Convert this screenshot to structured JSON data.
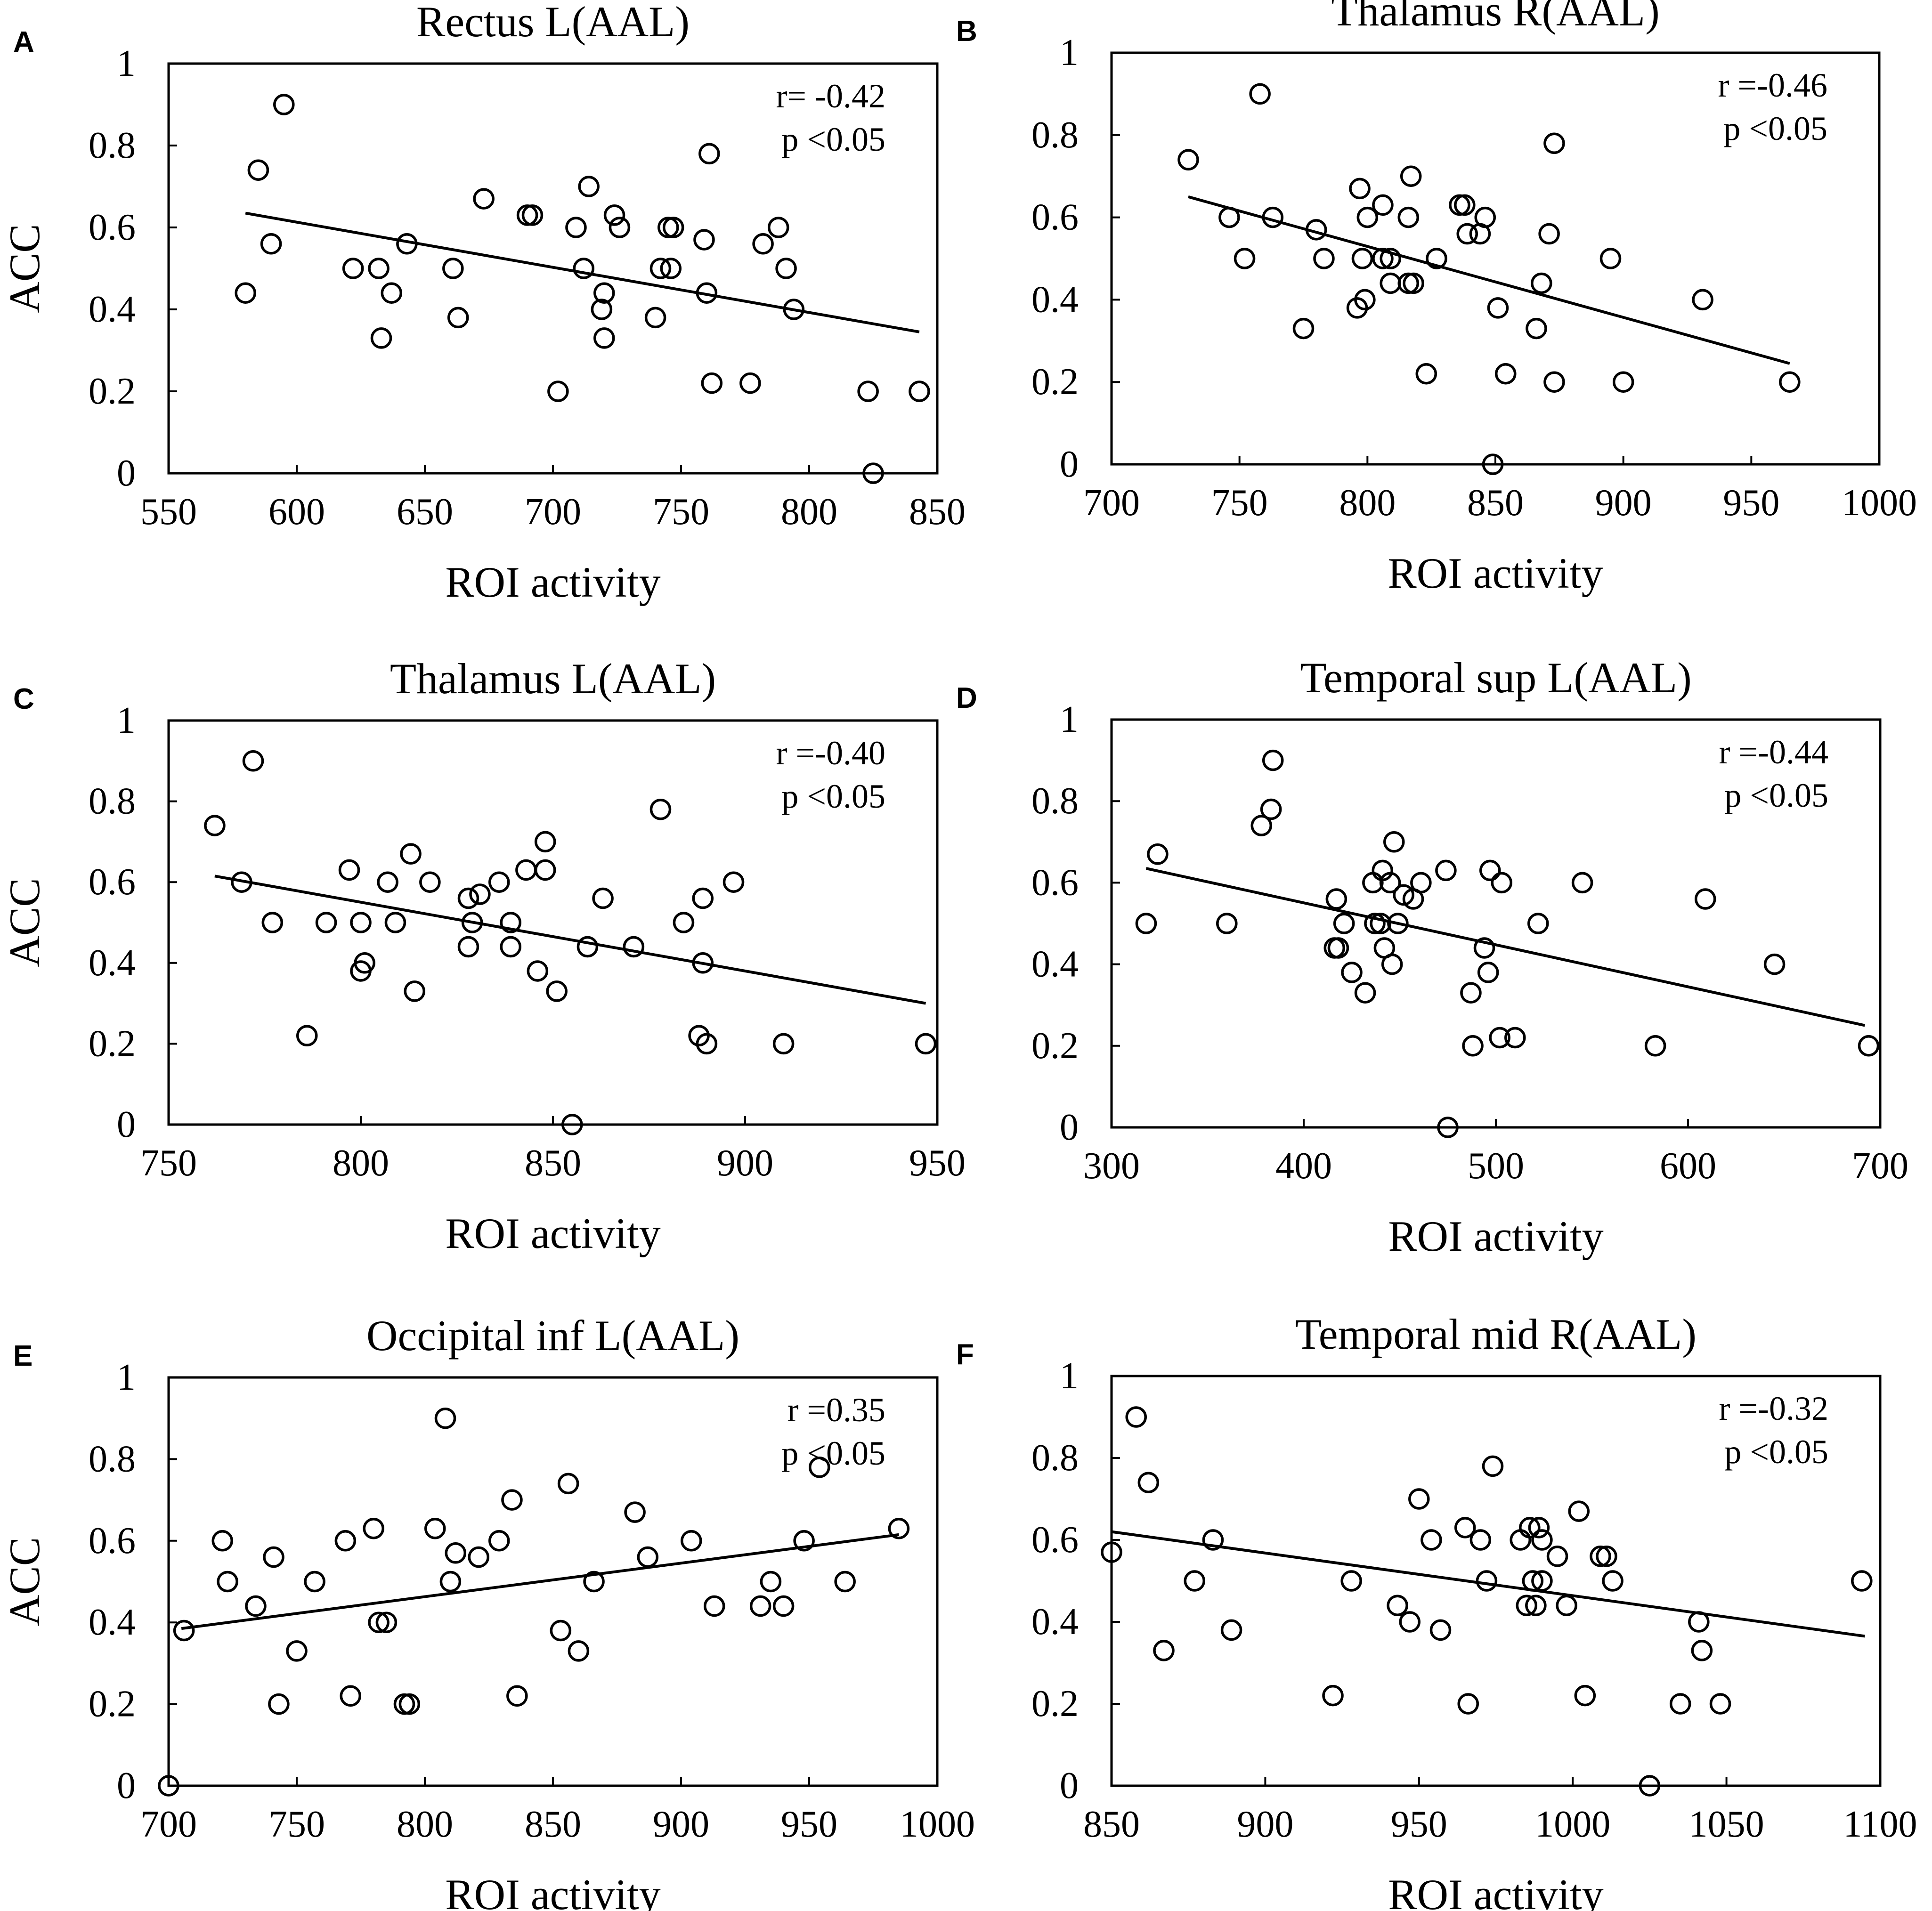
{
  "figure": {
    "description_hidden": false
  },
  "chart_data": [
    {
      "type": "scatter",
      "panel": "A",
      "title": "Rectus L(AAL)",
      "xlabel": "ROI activity",
      "ylabel": "ACC",
      "xlim": [
        550,
        850
      ],
      "ylim": [
        0,
        1
      ],
      "xticks": [
        550,
        600,
        650,
        700,
        750,
        800,
        850
      ],
      "yticks": [
        0,
        0.2,
        0.4,
        0.6,
        0.8,
        1
      ],
      "ytick_labels": [
        "0",
        "0.2",
        "0.4",
        "0.6",
        "0.8",
        "1"
      ],
      "stats": {
        "r": "r= -0.42",
        "p": "p <0.05"
      },
      "fit_line": {
        "x": [
          580,
          843
        ],
        "y": [
          0.635,
          0.345
        ]
      },
      "points": [
        [
          580,
          0.44
        ],
        [
          585,
          0.74
        ],
        [
          590,
          0.56
        ],
        [
          595,
          0.9
        ],
        [
          622,
          0.5
        ],
        [
          632,
          0.5
        ],
        [
          633,
          0.33
        ],
        [
          637,
          0.44
        ],
        [
          643,
          0.56
        ],
        [
          661,
          0.5
        ],
        [
          663,
          0.38
        ],
        [
          673,
          0.67
        ],
        [
          690,
          0.63
        ],
        [
          692,
          0.63
        ],
        [
          702,
          0.2
        ],
        [
          709,
          0.6
        ],
        [
          712,
          0.5
        ],
        [
          714,
          0.7
        ],
        [
          719,
          0.4
        ],
        [
          720,
          0.44
        ],
        [
          720,
          0.33
        ],
        [
          724,
          0.63
        ],
        [
          726,
          0.6
        ],
        [
          740,
          0.38
        ],
        [
          742,
          0.5
        ],
        [
          746,
          0.5
        ],
        [
          745,
          0.6
        ],
        [
          747,
          0.6
        ],
        [
          759,
          0.57
        ],
        [
          760,
          0.44
        ],
        [
          761,
          0.78
        ],
        [
          762,
          0.22
        ],
        [
          777,
          0.22
        ],
        [
          782,
          0.56
        ],
        [
          788,
          0.6
        ],
        [
          791,
          0.5
        ],
        [
          794,
          0.4
        ],
        [
          823,
          0.2
        ],
        [
          825,
          0.0
        ],
        [
          843,
          0.2
        ]
      ]
    },
    {
      "type": "scatter",
      "panel": "B",
      "title": "Thalamus R(AAL)",
      "xlabel": "ROI activity",
      "ylabel": "",
      "xlim": [
        700,
        1000
      ],
      "ylim": [
        0,
        1
      ],
      "xticks": [
        700,
        750,
        800,
        850,
        900,
        950,
        1000
      ],
      "yticks": [
        0,
        0.2,
        0.4,
        0.6,
        0.8,
        1
      ],
      "ytick_labels": [
        "0",
        "0.2",
        "0.4",
        "0.6",
        "0.8",
        "1"
      ],
      "stats": {
        "r": "r =-0.46",
        "p": "p <0.05"
      },
      "fit_line": {
        "x": [
          730,
          965
        ],
        "y": [
          0.65,
          0.245
        ]
      },
      "points": [
        [
          730,
          0.74
        ],
        [
          746,
          0.6
        ],
        [
          752,
          0.5
        ],
        [
          758,
          0.9
        ],
        [
          763,
          0.6
        ],
        [
          775,
          0.33
        ],
        [
          780,
          0.57
        ],
        [
          783,
          0.5
        ],
        [
          796,
          0.38
        ],
        [
          797,
          0.67
        ],
        [
          798,
          0.5
        ],
        [
          799,
          0.4
        ],
        [
          800,
          0.6
        ],
        [
          806,
          0.63
        ],
        [
          806,
          0.5
        ],
        [
          809,
          0.5
        ],
        [
          809,
          0.44
        ],
        [
          816,
          0.6
        ],
        [
          816,
          0.44
        ],
        [
          817,
          0.7
        ],
        [
          818,
          0.44
        ],
        [
          827,
          0.5
        ],
        [
          823,
          0.22
        ],
        [
          836,
          0.63
        ],
        [
          838,
          0.63
        ],
        [
          839,
          0.56
        ],
        [
          844,
          0.56
        ],
        [
          846,
          0.6
        ],
        [
          849,
          0.0
        ],
        [
          851,
          0.38
        ],
        [
          854,
          0.22
        ],
        [
          866,
          0.33
        ],
        [
          868,
          0.44
        ],
        [
          871,
          0.56
        ],
        [
          873,
          0.78
        ],
        [
          873,
          0.2
        ],
        [
          895,
          0.5
        ],
        [
          900,
          0.2
        ],
        [
          931,
          0.4
        ],
        [
          965,
          0.2
        ]
      ]
    },
    {
      "type": "scatter",
      "panel": "C",
      "title": "Thalamus L(AAL)",
      "xlabel": "ROI activity",
      "ylabel": "ACC",
      "xlim": [
        750,
        950
      ],
      "ylim": [
        0,
        1
      ],
      "xticks": [
        750,
        800,
        850,
        900,
        950
      ],
      "yticks": [
        0,
        0.2,
        0.4,
        0.6,
        0.8,
        1
      ],
      "ytick_labels": [
        "0",
        "0.2",
        "0.4",
        "0.6",
        "0.8",
        "1"
      ],
      "stats": {
        "r": "r =-0.40",
        "p": "p <0.05"
      },
      "fit_line": {
        "x": [
          762,
          947
        ],
        "y": [
          0.615,
          0.3
        ]
      },
      "points": [
        [
          762,
          0.74
        ],
        [
          769,
          0.6
        ],
        [
          772,
          0.9
        ],
        [
          777,
          0.5
        ],
        [
          786,
          0.22
        ],
        [
          791,
          0.5
        ],
        [
          797,
          0.63
        ],
        [
          800,
          0.5
        ],
        [
          800,
          0.38
        ],
        [
          801,
          0.4
        ],
        [
          807,
          0.6
        ],
        [
          809,
          0.5
        ],
        [
          813,
          0.67
        ],
        [
          814,
          0.33
        ],
        [
          818,
          0.6
        ],
        [
          828,
          0.56
        ],
        [
          828,
          0.44
        ],
        [
          829,
          0.5
        ],
        [
          831,
          0.57
        ],
        [
          836,
          0.6
        ],
        [
          839,
          0.5
        ],
        [
          839,
          0.44
        ],
        [
          843,
          0.63
        ],
        [
          846,
          0.38
        ],
        [
          848,
          0.7
        ],
        [
          848,
          0.63
        ],
        [
          851,
          0.33
        ],
        [
          855,
          0.0
        ],
        [
          859,
          0.44
        ],
        [
          863,
          0.56
        ],
        [
          871,
          0.44
        ],
        [
          878,
          0.78
        ],
        [
          884,
          0.5
        ],
        [
          888,
          0.22
        ],
        [
          889,
          0.56
        ],
        [
          889,
          0.4
        ],
        [
          890,
          0.2
        ],
        [
          897,
          0.6
        ],
        [
          910,
          0.2
        ],
        [
          947,
          0.2
        ]
      ]
    },
    {
      "type": "scatter",
      "panel": "D",
      "title": "Temporal sup L(AAL)",
      "xlabel": "ROI activity",
      "ylabel": "",
      "xlim": [
        300,
        700
      ],
      "ylim": [
        0,
        1
      ],
      "xticks": [
        300,
        400,
        500,
        600,
        700
      ],
      "yticks": [
        0,
        0.2,
        0.4,
        0.6,
        0.8,
        1
      ],
      "ytick_labels": [
        "0",
        "0.2",
        "0.4",
        "0.6",
        "0.8",
        "1"
      ],
      "stats": {
        "r": "r =-0.44",
        "p": "p <0.05"
      },
      "fit_line": {
        "x": [
          318,
          692
        ],
        "y": [
          0.635,
          0.25
        ]
      },
      "points": [
        [
          318,
          0.5
        ],
        [
          324,
          0.67
        ],
        [
          360,
          0.5
        ],
        [
          378,
          0.74
        ],
        [
          383,
          0.78
        ],
        [
          384,
          0.9
        ],
        [
          416,
          0.44
        ],
        [
          417,
          0.56
        ],
        [
          418,
          0.44
        ],
        [
          421,
          0.5
        ],
        [
          425,
          0.38
        ],
        [
          432,
          0.33
        ],
        [
          436,
          0.6
        ],
        [
          437,
          0.5
        ],
        [
          440,
          0.5
        ],
        [
          441,
          0.63
        ],
        [
          442,
          0.44
        ],
        [
          445,
          0.6
        ],
        [
          446,
          0.4
        ],
        [
          447,
          0.7
        ],
        [
          449,
          0.5
        ],
        [
          452,
          0.57
        ],
        [
          457,
          0.56
        ],
        [
          461,
          0.6
        ],
        [
          474,
          0.63
        ],
        [
          475,
          0.0
        ],
        [
          487,
          0.33
        ],
        [
          488,
          0.2
        ],
        [
          494,
          0.44
        ],
        [
          496,
          0.38
        ],
        [
          497,
          0.63
        ],
        [
          502,
          0.22
        ],
        [
          503,
          0.6
        ],
        [
          510,
          0.22
        ],
        [
          522,
          0.5
        ],
        [
          545,
          0.6
        ],
        [
          583,
          0.2
        ],
        [
          609,
          0.56
        ],
        [
          645,
          0.4
        ],
        [
          694,
          0.2
        ]
      ]
    },
    {
      "type": "scatter",
      "panel": "E",
      "title": "Occipital inf L(AAL)",
      "xlabel": "ROI activity",
      "ylabel": "ACC",
      "xlim": [
        700,
        1000
      ],
      "ylim": [
        0,
        1
      ],
      "xticks": [
        700,
        750,
        800,
        850,
        900,
        950,
        1000
      ],
      "yticks": [
        0,
        0.2,
        0.4,
        0.6,
        0.8,
        1
      ],
      "ytick_labels": [
        "0",
        "0.2",
        "0.4",
        "0.6",
        "0.8",
        "1"
      ],
      "stats": {
        "r": "r =0.35",
        "p": "p <0.05"
      },
      "fit_line": {
        "x": [
          705,
          985
        ],
        "y": [
          0.385,
          0.615
        ]
      },
      "points": [
        [
          700,
          0.0
        ],
        [
          706,
          0.38
        ],
        [
          721,
          0.6
        ],
        [
          723,
          0.5
        ],
        [
          734,
          0.44
        ],
        [
          741,
          0.56
        ],
        [
          743,
          0.2
        ],
        [
          750,
          0.33
        ],
        [
          757,
          0.5
        ],
        [
          769,
          0.6
        ],
        [
          771,
          0.22
        ],
        [
          780,
          0.63
        ],
        [
          782,
          0.4
        ],
        [
          785,
          0.4
        ],
        [
          792,
          0.2
        ],
        [
          794,
          0.2
        ],
        [
          804,
          0.63
        ],
        [
          808,
          0.9
        ],
        [
          810,
          0.5
        ],
        [
          812,
          0.57
        ],
        [
          821,
          0.56
        ],
        [
          829,
          0.6
        ],
        [
          834,
          0.7
        ],
        [
          836,
          0.22
        ],
        [
          853,
          0.38
        ],
        [
          856,
          0.74
        ],
        [
          860,
          0.33
        ],
        [
          866,
          0.5
        ],
        [
          882,
          0.67
        ],
        [
          887,
          0.56
        ],
        [
          904,
          0.6
        ],
        [
          913,
          0.44
        ],
        [
          931,
          0.44
        ],
        [
          935,
          0.5
        ],
        [
          940,
          0.44
        ],
        [
          948,
          0.6
        ],
        [
          954,
          0.78
        ],
        [
          964,
          0.5
        ],
        [
          985,
          0.63
        ]
      ]
    },
    {
      "type": "scatter",
      "panel": "F",
      "title": "Temporal mid R(AAL)",
      "xlabel": "ROI activity",
      "ylabel": "",
      "xlim": [
        850,
        1100
      ],
      "ylim": [
        0,
        1
      ],
      "xticks": [
        850,
        900,
        950,
        1000,
        1050,
        1100
      ],
      "yticks": [
        0,
        0.2,
        0.4,
        0.6,
        0.8,
        1
      ],
      "ytick_labels": [
        "0",
        "0.2",
        "0.4",
        "0.6",
        "0.8",
        "1"
      ],
      "stats": {
        "r": "r =-0.32",
        "p": "p <0.05"
      },
      "fit_line": {
        "x": [
          850,
          1095
        ],
        "y": [
          0.62,
          0.365
        ]
      },
      "points": [
        [
          850,
          0.57
        ],
        [
          858,
          0.9
        ],
        [
          862,
          0.74
        ],
        [
          867,
          0.33
        ],
        [
          877,
          0.5
        ],
        [
          883,
          0.6
        ],
        [
          889,
          0.38
        ],
        [
          922,
          0.22
        ],
        [
          928,
          0.5
        ],
        [
          943,
          0.44
        ],
        [
          947,
          0.4
        ],
        [
          950,
          0.7
        ],
        [
          954,
          0.6
        ],
        [
          957,
          0.38
        ],
        [
          965,
          0.63
        ],
        [
          966,
          0.2
        ],
        [
          970,
          0.6
        ],
        [
          972,
          0.5
        ],
        [
          974,
          0.78
        ],
        [
          983,
          0.6
        ],
        [
          985,
          0.44
        ],
        [
          986,
          0.63
        ],
        [
          987,
          0.5
        ],
        [
          988,
          0.44
        ],
        [
          989,
          0.63
        ],
        [
          990,
          0.5
        ],
        [
          990,
          0.6
        ],
        [
          995,
          0.56
        ],
        [
          998,
          0.44
        ],
        [
          1002,
          0.67
        ],
        [
          1004,
          0.22
        ],
        [
          1009,
          0.56
        ],
        [
          1011,
          0.56
        ],
        [
          1013,
          0.5
        ],
        [
          1025,
          0.0
        ],
        [
          1035,
          0.2
        ],
        [
          1041,
          0.4
        ],
        [
          1042,
          0.33
        ],
        [
          1048,
          0.2
        ],
        [
          1094,
          0.5
        ]
      ]
    }
  ]
}
